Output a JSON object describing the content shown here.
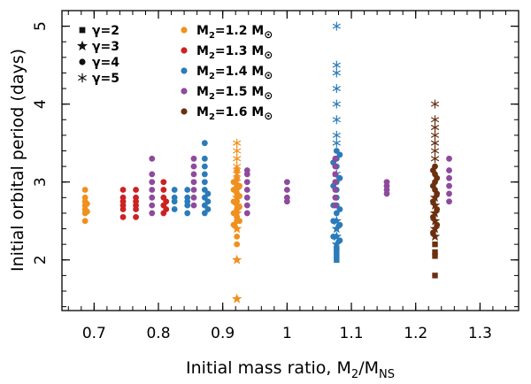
{
  "chart_data": {
    "type": "scatter",
    "title": "",
    "xlabel": "Initial mass ratio, M2/MNS",
    "xlabel_main": "Initial mass ratio, M",
    "xlabel_sub1": "2",
    "xlabel_mid": "/M",
    "xlabel_sub2": "NS",
    "ylabel": "Initial orbital period (days)",
    "xlim": [
      0.65,
      1.36
    ],
    "ylim": [
      1.35,
      5.2
    ],
    "xticks": [
      0.7,
      0.8,
      0.9,
      1.0,
      1.1,
      1.2,
      1.3
    ],
    "xtick_labels": [
      "0.7",
      "0.8",
      "0.9",
      "1",
      "1.1",
      "1.2",
      "1.3"
    ],
    "xminor_step": 0.02,
    "yticks": [
      2,
      3,
      4,
      5
    ],
    "ytick_labels": [
      "2",
      "3",
      "4",
      "5"
    ],
    "yminor_step": 0.2,
    "grid": false,
    "colors": {
      "1.2": "#f0901e",
      "1.3": "#cc2222",
      "1.4": "#2b7bb9",
      "1.5": "#8e4a9c",
      "1.6": "#6b3010",
      "gamma": "#111111"
    },
    "legend_gamma": [
      {
        "label": "γ=2",
        "marker": "square"
      },
      {
        "label": "γ=3",
        "marker": "star"
      },
      {
        "label": "γ=4",
        "marker": "circle"
      },
      {
        "label": "γ=5",
        "marker": "asterisk"
      }
    ],
    "legend_mass": [
      {
        "key": "1.2",
        "pre": "M",
        "sub": "2",
        "post": "=1.2 M",
        "unit": "⊙"
      },
      {
        "key": "1.3",
        "pre": "M",
        "sub": "2",
        "post": "=1.3 M",
        "unit": "⊙"
      },
      {
        "key": "1.4",
        "pre": "M",
        "sub": "2",
        "post": "=1.4 M",
        "unit": "⊙"
      },
      {
        "key": "1.5",
        "pre": "M",
        "sub": "2",
        "post": "=1.5 M",
        "unit": "⊙"
      },
      {
        "key": "1.6",
        "pre": "M",
        "sub": "2",
        "post": "=1.6 M",
        "unit": "⊙"
      }
    ],
    "series": [
      {
        "name": "M2=1.2 Msun",
        "key": "1.2",
        "points": [
          [
            0.686,
            2.5,
            "circle"
          ],
          [
            0.686,
            2.6,
            "circle"
          ],
          [
            0.686,
            2.65,
            "circle"
          ],
          [
            0.686,
            2.7,
            "circle"
          ],
          [
            0.686,
            2.75,
            "circle"
          ],
          [
            0.686,
            2.8,
            "circle"
          ],
          [
            0.686,
            2.9,
            "circle"
          ],
          [
            0.689,
            2.62,
            "circle"
          ],
          [
            0.689,
            2.72,
            "circle"
          ],
          [
            0.922,
            1.5,
            "star"
          ],
          [
            0.922,
            2.0,
            "star"
          ],
          [
            0.922,
            2.2,
            "circle"
          ],
          [
            0.922,
            2.3,
            "circle"
          ],
          [
            0.922,
            2.4,
            "star"
          ],
          [
            0.922,
            2.5,
            "circle"
          ],
          [
            0.922,
            2.55,
            "circle"
          ],
          [
            0.922,
            2.6,
            "star"
          ],
          [
            0.922,
            2.65,
            "circle"
          ],
          [
            0.922,
            2.7,
            "star"
          ],
          [
            0.922,
            2.75,
            "circle"
          ],
          [
            0.922,
            2.8,
            "star"
          ],
          [
            0.922,
            2.85,
            "circle"
          ],
          [
            0.922,
            2.9,
            "star"
          ],
          [
            0.922,
            2.95,
            "circle"
          ],
          [
            0.922,
            3.0,
            "asterisk"
          ],
          [
            0.922,
            3.05,
            "circle"
          ],
          [
            0.922,
            3.1,
            "asterisk"
          ],
          [
            0.922,
            3.15,
            "circle"
          ],
          [
            0.922,
            3.2,
            "asterisk"
          ],
          [
            0.922,
            3.3,
            "asterisk"
          ],
          [
            0.922,
            3.4,
            "asterisk"
          ],
          [
            0.922,
            3.5,
            "asterisk"
          ],
          [
            0.917,
            2.45,
            "circle"
          ],
          [
            0.917,
            2.6,
            "circle"
          ],
          [
            0.917,
            2.75,
            "circle"
          ],
          [
            0.917,
            2.9,
            "circle"
          ],
          [
            0.917,
            3.0,
            "circle"
          ],
          [
            0.926,
            2.5,
            "circle"
          ],
          [
            0.926,
            2.68,
            "circle"
          ],
          [
            0.926,
            2.82,
            "circle"
          ],
          [
            0.926,
            2.95,
            "circle"
          ]
        ]
      },
      {
        "name": "M2=1.3 Msun",
        "key": "1.3",
        "points": [
          [
            0.745,
            2.55,
            "circle"
          ],
          [
            0.745,
            2.65,
            "circle"
          ],
          [
            0.745,
            2.7,
            "circle"
          ],
          [
            0.745,
            2.75,
            "circle"
          ],
          [
            0.745,
            2.8,
            "circle"
          ],
          [
            0.745,
            2.9,
            "circle"
          ],
          [
            0.765,
            2.55,
            "circle"
          ],
          [
            0.765,
            2.65,
            "circle"
          ],
          [
            0.765,
            2.7,
            "circle"
          ],
          [
            0.765,
            2.75,
            "circle"
          ],
          [
            0.765,
            2.8,
            "circle"
          ],
          [
            0.765,
            2.9,
            "circle"
          ],
          [
            0.808,
            2.6,
            "circle"
          ],
          [
            0.808,
            2.7,
            "circle"
          ],
          [
            0.808,
            2.8,
            "circle"
          ],
          [
            0.808,
            2.9,
            "circle"
          ],
          [
            0.808,
            3.0,
            "circle"
          ],
          [
            0.812,
            2.65,
            "circle"
          ],
          [
            0.812,
            2.75,
            "circle"
          ]
        ]
      },
      {
        "name": "M2=1.4 Msun",
        "key": "1.4",
        "points": [
          [
            0.825,
            2.65,
            "circle"
          ],
          [
            0.825,
            2.75,
            "circle"
          ],
          [
            0.825,
            2.8,
            "circle"
          ],
          [
            0.825,
            2.9,
            "circle"
          ],
          [
            0.845,
            2.6,
            "circle"
          ],
          [
            0.845,
            2.7,
            "circle"
          ],
          [
            0.845,
            2.75,
            "circle"
          ],
          [
            0.845,
            2.8,
            "circle"
          ],
          [
            0.845,
            2.9,
            "circle"
          ],
          [
            0.872,
            2.6,
            "circle"
          ],
          [
            0.872,
            2.7,
            "circle"
          ],
          [
            0.872,
            2.8,
            "circle"
          ],
          [
            0.872,
            2.9,
            "circle"
          ],
          [
            0.872,
            3.0,
            "circle"
          ],
          [
            0.872,
            3.1,
            "circle"
          ],
          [
            0.872,
            3.2,
            "circle"
          ],
          [
            0.872,
            3.3,
            "circle"
          ],
          [
            0.872,
            3.5,
            "circle"
          ],
          [
            0.877,
            2.65,
            "circle"
          ],
          [
            0.877,
            2.75,
            "circle"
          ],
          [
            0.877,
            2.85,
            "circle"
          ],
          [
            1.077,
            2.0,
            "square"
          ],
          [
            1.077,
            2.05,
            "square"
          ],
          [
            1.077,
            2.1,
            "square"
          ],
          [
            1.077,
            2.15,
            "square"
          ],
          [
            1.077,
            2.2,
            "star"
          ],
          [
            1.077,
            2.3,
            "star"
          ],
          [
            1.077,
            2.4,
            "star"
          ],
          [
            1.077,
            2.5,
            "star"
          ],
          [
            1.077,
            2.6,
            "circle"
          ],
          [
            1.077,
            2.7,
            "circle"
          ],
          [
            1.077,
            2.8,
            "circle"
          ],
          [
            1.077,
            2.9,
            "circle"
          ],
          [
            1.077,
            3.0,
            "circle"
          ],
          [
            1.077,
            3.1,
            "asterisk"
          ],
          [
            1.077,
            3.2,
            "circle"
          ],
          [
            1.077,
            3.3,
            "circle"
          ],
          [
            1.077,
            3.4,
            "circle"
          ],
          [
            1.077,
            3.5,
            "asterisk"
          ],
          [
            1.077,
            3.6,
            "asterisk"
          ],
          [
            1.077,
            3.8,
            "asterisk"
          ],
          [
            1.077,
            4.0,
            "asterisk"
          ],
          [
            1.077,
            4.2,
            "asterisk"
          ],
          [
            1.077,
            4.4,
            "asterisk"
          ],
          [
            1.077,
            4.5,
            "asterisk"
          ],
          [
            1.077,
            5.0,
            "asterisk"
          ],
          [
            1.072,
            2.3,
            "circle"
          ],
          [
            1.072,
            2.5,
            "circle"
          ],
          [
            1.072,
            2.7,
            "circle"
          ],
          [
            1.072,
            2.95,
            "circle"
          ],
          [
            1.072,
            3.25,
            "circle"
          ],
          [
            1.082,
            2.25,
            "circle"
          ],
          [
            1.082,
            2.45,
            "circle"
          ],
          [
            1.082,
            2.65,
            "circle"
          ],
          [
            1.082,
            3.05,
            "circle"
          ],
          [
            1.082,
            3.35,
            "circle"
          ]
        ]
      },
      {
        "name": "M2=1.5 Msun",
        "key": "1.5",
        "points": [
          [
            0.79,
            2.6,
            "circle"
          ],
          [
            0.79,
            2.7,
            "circle"
          ],
          [
            0.79,
            2.8,
            "circle"
          ],
          [
            0.79,
            2.9,
            "circle"
          ],
          [
            0.79,
            3.0,
            "circle"
          ],
          [
            0.79,
            3.1,
            "circle"
          ],
          [
            0.79,
            3.3,
            "circle"
          ],
          [
            0.855,
            2.7,
            "circle"
          ],
          [
            0.855,
            2.8,
            "circle"
          ],
          [
            0.855,
            2.9,
            "circle"
          ],
          [
            0.855,
            3.0,
            "circle"
          ],
          [
            0.855,
            3.1,
            "circle"
          ],
          [
            0.855,
            3.2,
            "circle"
          ],
          [
            0.855,
            3.3,
            "circle"
          ],
          [
            0.938,
            2.6,
            "circle"
          ],
          [
            0.938,
            2.7,
            "circle"
          ],
          [
            0.938,
            2.8,
            "circle"
          ],
          [
            0.938,
            2.9,
            "circle"
          ],
          [
            0.938,
            3.0,
            "circle"
          ],
          [
            0.938,
            3.1,
            "circle"
          ],
          [
            0.938,
            3.15,
            "circle"
          ],
          [
            1.0,
            2.75,
            "circle"
          ],
          [
            1.0,
            2.8,
            "circle"
          ],
          [
            1.0,
            2.9,
            "circle"
          ],
          [
            1.0,
            3.0,
            "circle"
          ],
          [
            1.075,
            2.7,
            "circle"
          ],
          [
            1.075,
            2.8,
            "circle"
          ],
          [
            1.075,
            2.9,
            "circle"
          ],
          [
            1.075,
            3.0,
            "circle"
          ],
          [
            1.075,
            3.1,
            "circle"
          ],
          [
            1.075,
            3.2,
            "circle"
          ],
          [
            1.075,
            3.3,
            "circle"
          ],
          [
            1.155,
            2.85,
            "circle"
          ],
          [
            1.155,
            2.9,
            "circle"
          ],
          [
            1.155,
            2.95,
            "circle"
          ],
          [
            1.155,
            3.0,
            "circle"
          ],
          [
            1.252,
            2.75,
            "circle"
          ],
          [
            1.252,
            2.85,
            "circle"
          ],
          [
            1.252,
            2.95,
            "circle"
          ],
          [
            1.252,
            3.05,
            "circle"
          ],
          [
            1.252,
            3.15,
            "circle"
          ],
          [
            1.252,
            3.3,
            "circle"
          ]
        ]
      },
      {
        "name": "M2=1.6 Msun",
        "key": "1.6",
        "points": [
          [
            1.23,
            1.8,
            "square"
          ],
          [
            1.23,
            2.05,
            "square"
          ],
          [
            1.23,
            2.1,
            "square"
          ],
          [
            1.23,
            2.2,
            "square"
          ],
          [
            1.23,
            2.3,
            "star"
          ],
          [
            1.23,
            2.4,
            "star"
          ],
          [
            1.23,
            2.5,
            "star"
          ],
          [
            1.23,
            2.6,
            "star"
          ],
          [
            1.23,
            2.7,
            "star"
          ],
          [
            1.23,
            2.8,
            "star"
          ],
          [
            1.23,
            2.9,
            "circle"
          ],
          [
            1.23,
            3.0,
            "circle"
          ],
          [
            1.23,
            3.1,
            "circle"
          ],
          [
            1.23,
            3.2,
            "circle"
          ],
          [
            1.23,
            3.3,
            "asterisk"
          ],
          [
            1.23,
            3.4,
            "asterisk"
          ],
          [
            1.23,
            3.5,
            "asterisk"
          ],
          [
            1.23,
            3.6,
            "asterisk"
          ],
          [
            1.23,
            3.7,
            "asterisk"
          ],
          [
            1.23,
            3.8,
            "asterisk"
          ],
          [
            1.23,
            4.0,
            "asterisk"
          ],
          [
            1.227,
            2.35,
            "circle"
          ],
          [
            1.227,
            2.55,
            "circle"
          ],
          [
            1.227,
            2.75,
            "circle"
          ],
          [
            1.227,
            2.95,
            "circle"
          ],
          [
            1.227,
            3.15,
            "circle"
          ],
          [
            1.233,
            2.45,
            "circle"
          ],
          [
            1.233,
            2.65,
            "circle"
          ],
          [
            1.233,
            2.85,
            "circle"
          ],
          [
            1.233,
            3.05,
            "circle"
          ]
        ]
      }
    ]
  }
}
